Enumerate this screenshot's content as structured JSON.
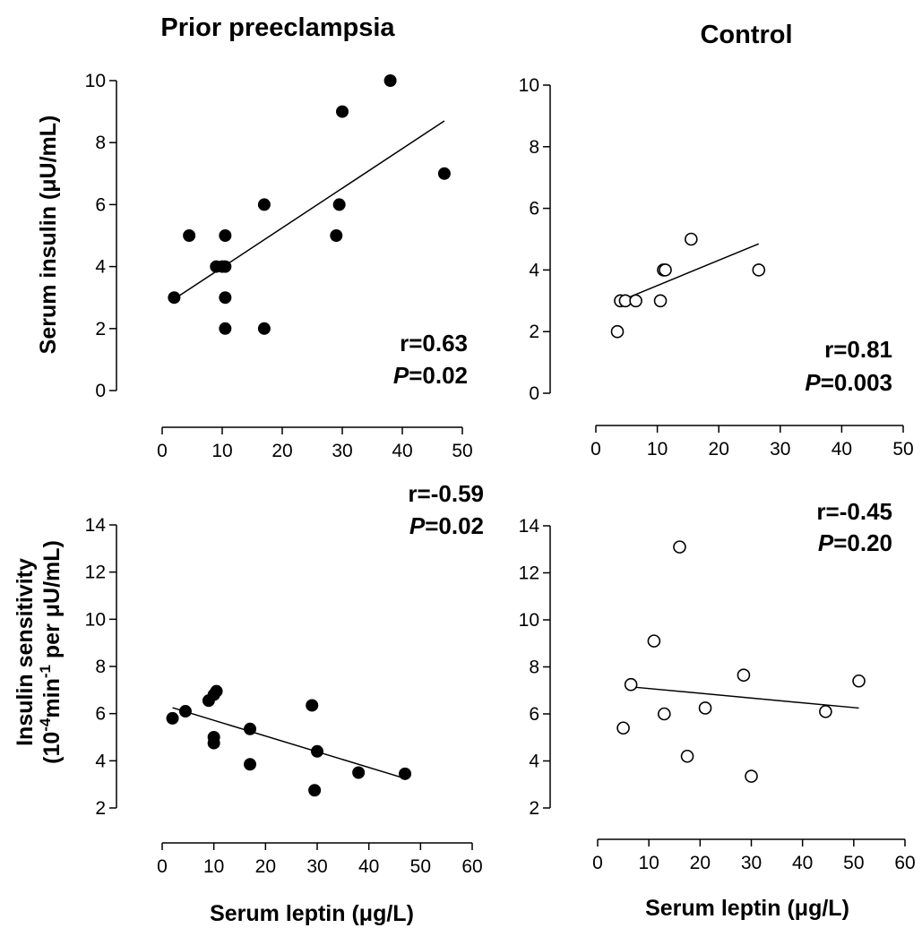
{
  "columns": {
    "left_title": "Prior preeclampsia",
    "right_title": "Control"
  },
  "axis_titles": {
    "top_y": "Serum insulin (μU/mL)",
    "bottom_y_line1": "Insulin sensitivity",
    "bottom_y_line2_a": "(10",
    "bottom_y_line2_sup1": "-4",
    "bottom_y_line2_b": "min",
    "bottom_y_line2_sup2": "-1",
    "bottom_y_line2_c": " per μU/mL)",
    "bottom_x_left": "Serum leptin (μg/L)",
    "bottom_x_right": "Serum leptin (μg/L)"
  },
  "chart_data": [
    {
      "id": "top-left",
      "type": "scatter",
      "marker": "filled",
      "xlim": [
        0,
        50
      ],
      "ylim": [
        0,
        10
      ],
      "xticks": [
        0,
        10,
        20,
        30,
        40,
        50
      ],
      "yticks": [
        0,
        2,
        4,
        6,
        8,
        10
      ],
      "points": [
        {
          "x": 2,
          "y": 3
        },
        {
          "x": 4.5,
          "y": 5
        },
        {
          "x": 9,
          "y": 4
        },
        {
          "x": 10,
          "y": 4
        },
        {
          "x": 10.5,
          "y": 4
        },
        {
          "x": 10.5,
          "y": 5
        },
        {
          "x": 10.5,
          "y": 3
        },
        {
          "x": 10.5,
          "y": 2
        },
        {
          "x": 17,
          "y": 6
        },
        {
          "x": 17,
          "y": 2
        },
        {
          "x": 29,
          "y": 5
        },
        {
          "x": 29.5,
          "y": 6
        },
        {
          "x": 30,
          "y": 9
        },
        {
          "x": 38,
          "y": 10
        },
        {
          "x": 47,
          "y": 7
        }
      ],
      "fit": {
        "x1": 2,
        "y1": 2.95,
        "x2": 47,
        "y2": 8.7
      },
      "stat_r": "r=0.63",
      "stat_p_label": "P",
      "stat_p_value": "=0.02"
    },
    {
      "id": "top-right",
      "type": "scatter",
      "marker": "open",
      "xlim": [
        0,
        50
      ],
      "ylim": [
        0,
        10
      ],
      "xticks": [
        0,
        10,
        20,
        30,
        40,
        50
      ],
      "yticks": [
        0,
        2,
        4,
        6,
        8,
        10
      ],
      "points": [
        {
          "x": 3.5,
          "y": 2
        },
        {
          "x": 4,
          "y": 3
        },
        {
          "x": 4.8,
          "y": 3
        },
        {
          "x": 6.5,
          "y": 3
        },
        {
          "x": 10.5,
          "y": 3
        },
        {
          "x": 11,
          "y": 4
        },
        {
          "x": 11.3,
          "y": 4
        },
        {
          "x": 15.5,
          "y": 5
        },
        {
          "x": 26.5,
          "y": 4
        }
      ],
      "fit": {
        "x1": 4,
        "y1": 3.0,
        "x2": 26.5,
        "y2": 4.85
      },
      "stat_r": "r=0.81",
      "stat_p_label": "P",
      "stat_p_value": "=0.003"
    },
    {
      "id": "bottom-left",
      "type": "scatter",
      "marker": "filled",
      "xlim": [
        0,
        60
      ],
      "ylim": [
        2,
        14
      ],
      "xticks": [
        0,
        10,
        20,
        30,
        40,
        50,
        60
      ],
      "yticks": [
        2,
        4,
        6,
        8,
        10,
        12,
        14
      ],
      "points": [
        {
          "x": 2,
          "y": 5.8
        },
        {
          "x": 4.5,
          "y": 6.1
        },
        {
          "x": 9,
          "y": 6.55
        },
        {
          "x": 10,
          "y": 6.8
        },
        {
          "x": 10.5,
          "y": 6.95
        },
        {
          "x": 10,
          "y": 5.0
        },
        {
          "x": 10,
          "y": 4.75
        },
        {
          "x": 17,
          "y": 5.35
        },
        {
          "x": 17,
          "y": 3.85
        },
        {
          "x": 29,
          "y": 6.35
        },
        {
          "x": 30,
          "y": 4.4
        },
        {
          "x": 29.5,
          "y": 2.75
        },
        {
          "x": 38,
          "y": 3.5
        },
        {
          "x": 47,
          "y": 3.45
        }
      ],
      "fit": {
        "x1": 2,
        "y1": 6.25,
        "x2": 47,
        "y2": 3.25
      },
      "stat_r": "r=-0.59",
      "stat_p_label": "P",
      "stat_p_value": "=0.02"
    },
    {
      "id": "bottom-right",
      "type": "scatter",
      "marker": "open",
      "xlim": [
        0,
        60
      ],
      "ylim": [
        2,
        14
      ],
      "xticks": [
        0,
        10,
        20,
        30,
        40,
        50,
        60
      ],
      "yticks": [
        2,
        4,
        6,
        8,
        10,
        12,
        14
      ],
      "points": [
        {
          "x": 5,
          "y": 5.4
        },
        {
          "x": 6.5,
          "y": 7.25
        },
        {
          "x": 11,
          "y": 9.1
        },
        {
          "x": 13,
          "y": 6.0
        },
        {
          "x": 16,
          "y": 13.1
        },
        {
          "x": 17.5,
          "y": 4.2
        },
        {
          "x": 21,
          "y": 6.25
        },
        {
          "x": 28.5,
          "y": 7.65
        },
        {
          "x": 30,
          "y": 3.35
        },
        {
          "x": 44.5,
          "y": 6.1
        },
        {
          "x": 51,
          "y": 7.4
        }
      ],
      "fit": {
        "x1": 6.5,
        "y1": 7.15,
        "x2": 51,
        "y2": 6.25
      },
      "stat_r": "r=-0.45",
      "stat_p_label": "P",
      "stat_p_value": "=0.20"
    }
  ]
}
